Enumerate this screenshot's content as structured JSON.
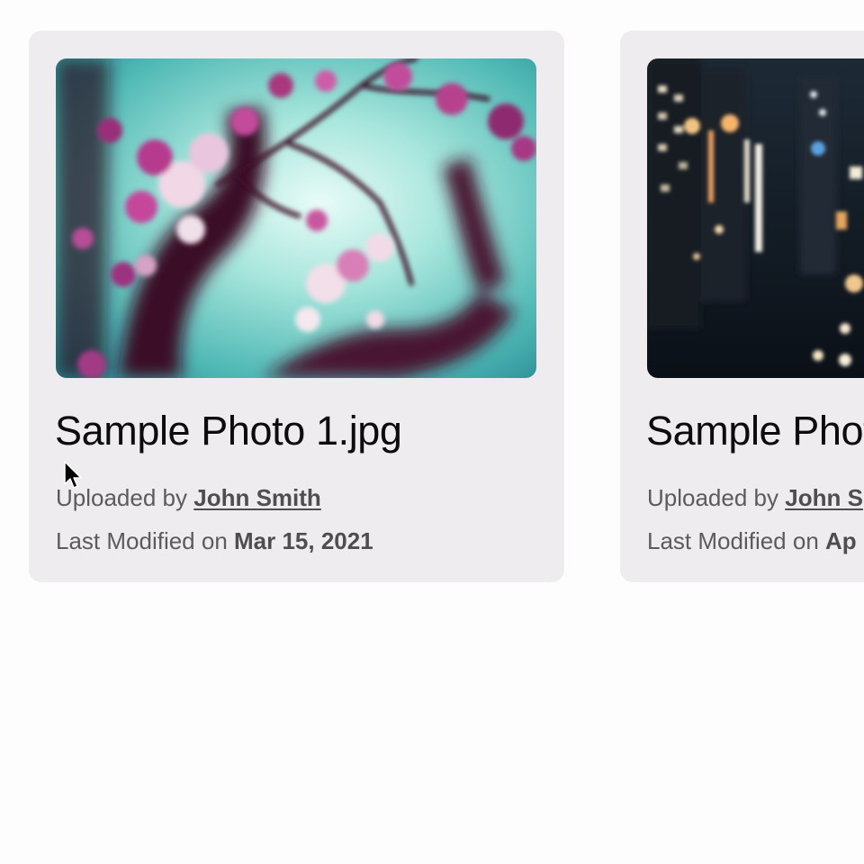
{
  "cards": [
    {
      "title": "Sample Photo 1.jpg",
      "uploaded_prefix": "Uploaded by ",
      "uploader": "John Smith",
      "modified_prefix": "Last Modified on ",
      "modified_date": "Mar 15, 2021",
      "image_subject": "cherry blossom branch"
    },
    {
      "title": "Sample Photo",
      "uploaded_prefix": "Uploaded by ",
      "uploader": "John S",
      "modified_prefix": "Last Modified on ",
      "modified_date": "Ap",
      "image_subject": "city street at night"
    }
  ],
  "colors": {
    "page_background": "#fefdfe",
    "card_background": "#eeecef",
    "title_text": "#0c0c0d",
    "meta_text": "#5b5a5d"
  }
}
